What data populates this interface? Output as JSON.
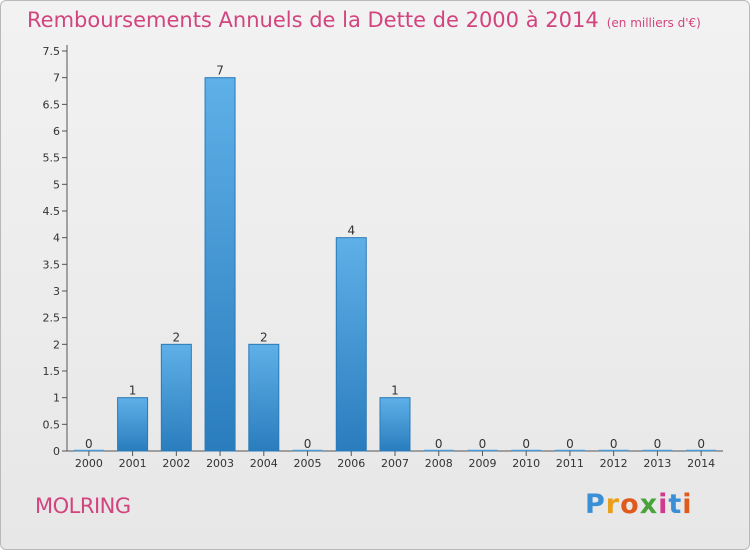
{
  "header": {
    "title": "Remboursements Annuels de la Dette de 2000 à 2014",
    "unit": "(en milliers d'€)"
  },
  "commune": "MOLRING",
  "logo": {
    "text": "Proxiti"
  },
  "colors": {
    "title": "#d2447e",
    "bar_light": "#5fb0e8",
    "bar_dark": "#2a7dbd"
  },
  "chart_data": {
    "type": "bar",
    "title": "Remboursements Annuels de la Dette de 2000 à 2014",
    "subtitle": "(en milliers d'€)",
    "categories": [
      "2000",
      "2001",
      "2002",
      "2003",
      "2004",
      "2005",
      "2006",
      "2007",
      "2008",
      "2009",
      "2010",
      "2011",
      "2012",
      "2013",
      "2014"
    ],
    "values": [
      0,
      1,
      2,
      7,
      2,
      0,
      4,
      1,
      0,
      0,
      0,
      0,
      0,
      0,
      0
    ],
    "data_labels": [
      "0",
      "1",
      "2",
      "7",
      "2",
      "0",
      "4",
      "1",
      "0",
      "0",
      "0",
      "0",
      "0",
      "0",
      "0"
    ],
    "y_ticks": [
      "0",
      "0.5",
      "1",
      "1.5",
      "2",
      "2.5",
      "3",
      "3.5",
      "4",
      "4.5",
      "5",
      "5.5",
      "6",
      "6.5",
      "7",
      "7.5"
    ],
    "ylim": [
      0,
      7.5
    ],
    "grid": false
  }
}
